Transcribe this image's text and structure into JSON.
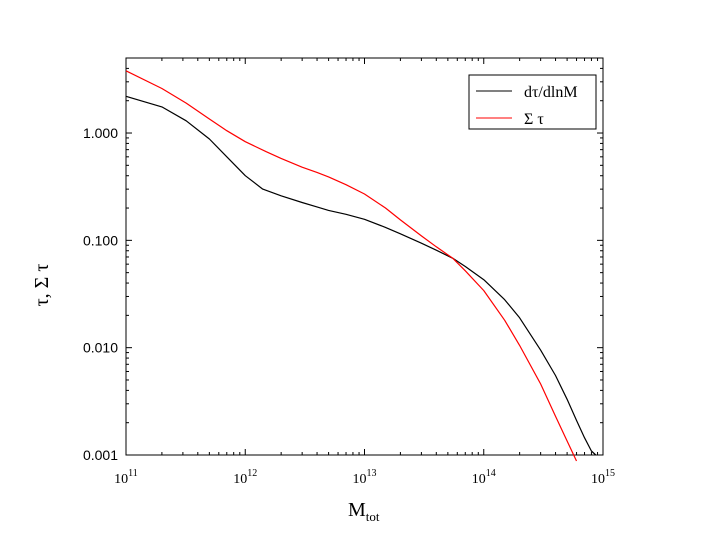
{
  "chart_data": {
    "type": "line",
    "xlabel": "M",
    "xlabel_sub": "tot",
    "ylabel": "τ, Σ τ",
    "xscale": "log",
    "yscale": "log",
    "xlim": [
      100000000000.0,
      1000000000000000.0
    ],
    "ylim": [
      0.001,
      5
    ],
    "x_ticks": [
      {
        "base": "10",
        "exp": "11",
        "value": 100000000000.0
      },
      {
        "base": "10",
        "exp": "12",
        "value": 1000000000000.0
      },
      {
        "base": "10",
        "exp": "13",
        "value": 10000000000000.0
      },
      {
        "base": "10",
        "exp": "14",
        "value": 100000000000000.0
      },
      {
        "base": "10",
        "exp": "15",
        "value": 1000000000000000.0
      }
    ],
    "y_ticks": [
      {
        "label": "0.001",
        "value": 0.001
      },
      {
        "label": "0.010",
        "value": 0.01
      },
      {
        "label": "0.100",
        "value": 0.1
      },
      {
        "label": "1.000",
        "value": 1.0
      }
    ],
    "legend_position": "top-right",
    "series": [
      {
        "name": "dτ/dlnM",
        "color": "#000000",
        "x": [
          100000000000.0,
          200000000000.0,
          320000000000.0,
          500000000000.0,
          700000000000.0,
          1000000000000.0,
          1400000000000.0,
          2000000000000.0,
          3000000000000.0,
          4000000000000.0,
          5000000000000.0,
          7000000000000.0,
          10000000000000.0,
          15000000000000.0,
          20000000000000.0,
          30000000000000.0,
          40000000000000.0,
          55000000000000.0,
          70000000000000.0,
          100000000000000.0,
          150000000000000.0,
          200000000000000.0,
          300000000000000.0,
          400000000000000.0,
          500000000000000.0,
          600000000000000.0,
          700000000000000.0,
          800000000000000.0,
          870000000000000.0
        ],
        "y": [
          2.2,
          1.75,
          1.3,
          0.88,
          0.6,
          0.4,
          0.3,
          0.26,
          0.225,
          0.205,
          0.19,
          0.175,
          0.157,
          0.132,
          0.115,
          0.094,
          0.081,
          0.068,
          0.057,
          0.043,
          0.028,
          0.019,
          0.0095,
          0.0055,
          0.0033,
          0.0021,
          0.00145,
          0.00109,
          0.001
        ]
      },
      {
        "name": "Σ τ",
        "color": "#ff0000",
        "x": [
          100000000000.0,
          200000000000.0,
          320000000000.0,
          500000000000.0,
          700000000000.0,
          1000000000000.0,
          1500000000000.0,
          2000000000000.0,
          3000000000000.0,
          4000000000000.0,
          5000000000000.0,
          7000000000000.0,
          10000000000000.0,
          15000000000000.0,
          20000000000000.0,
          30000000000000.0,
          40000000000000.0,
          55000000000000.0,
          70000000000000.0,
          100000000000000.0,
          150000000000000.0,
          200000000000000.0,
          300000000000000.0,
          400000000000000.0,
          500000000000000.0,
          600000000000000.0
        ],
        "y": [
          3.8,
          2.6,
          1.9,
          1.35,
          1.05,
          0.83,
          0.67,
          0.58,
          0.48,
          0.43,
          0.39,
          0.33,
          0.27,
          0.2,
          0.155,
          0.11,
          0.087,
          0.068,
          0.052,
          0.034,
          0.018,
          0.0105,
          0.0046,
          0.0023,
          0.00135,
          0.00088
        ]
      }
    ]
  }
}
